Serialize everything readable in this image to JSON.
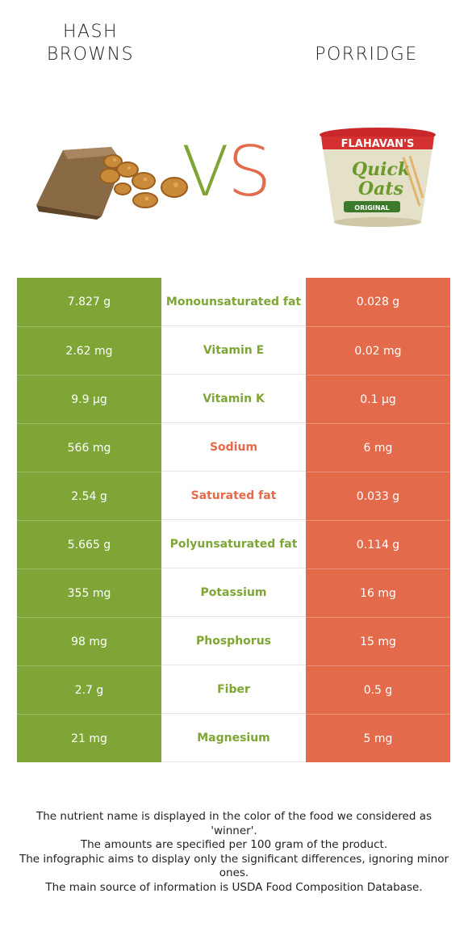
{
  "header": {
    "left_title_line1": "HASH",
    "left_title_line2": "BROWNS",
    "right_title": "PORRIDGE",
    "vs_v": "V",
    "vs_s": "S"
  },
  "colors": {
    "left_food": "#7ea535",
    "right_food": "#e36a4a"
  },
  "rows": [
    {
      "left": "7.827 g",
      "nutrient": "Monounsaturated fat",
      "right": "0.028 g",
      "winner": "left"
    },
    {
      "left": "2.62 mg",
      "nutrient": "Vitamin E",
      "right": "0.02 mg",
      "winner": "left"
    },
    {
      "left": "9.9 µg",
      "nutrient": "Vitamin K",
      "right": "0.1 µg",
      "winner": "left"
    },
    {
      "left": "566 mg",
      "nutrient": "Sodium",
      "right": "6 mg",
      "winner": "right"
    },
    {
      "left": "2.54 g",
      "nutrient": "Saturated fat",
      "right": "0.033 g",
      "winner": "right"
    },
    {
      "left": "5.665 g",
      "nutrient": "Polyunsaturated fat",
      "right": "0.114 g",
      "winner": "left"
    },
    {
      "left": "355 mg",
      "nutrient": "Potassium",
      "right": "16 mg",
      "winner": "left"
    },
    {
      "left": "98 mg",
      "nutrient": "Phosphorus",
      "right": "15 mg",
      "winner": "left"
    },
    {
      "left": "2.7 g",
      "nutrient": "Fiber",
      "right": "0.5 g",
      "winner": "left"
    },
    {
      "left": "21 mg",
      "nutrient": "Magnesium",
      "right": "5 mg",
      "winner": "left"
    }
  ],
  "footer": {
    "line1": "The nutrient name is displayed in the color of the food we considered as 'winner'.",
    "line2": "The amounts are specified per 100 gram of the product.",
    "line3": "The infographic aims to display only the significant differences, ignoring minor ones.",
    "line4": "The main source of information is USDA Food Composition Database."
  },
  "product_art": {
    "brand": "FLAHAVAN'S",
    "name_line1": "Quick",
    "name_line2": "Oats",
    "variant": "ORIGINAL"
  }
}
